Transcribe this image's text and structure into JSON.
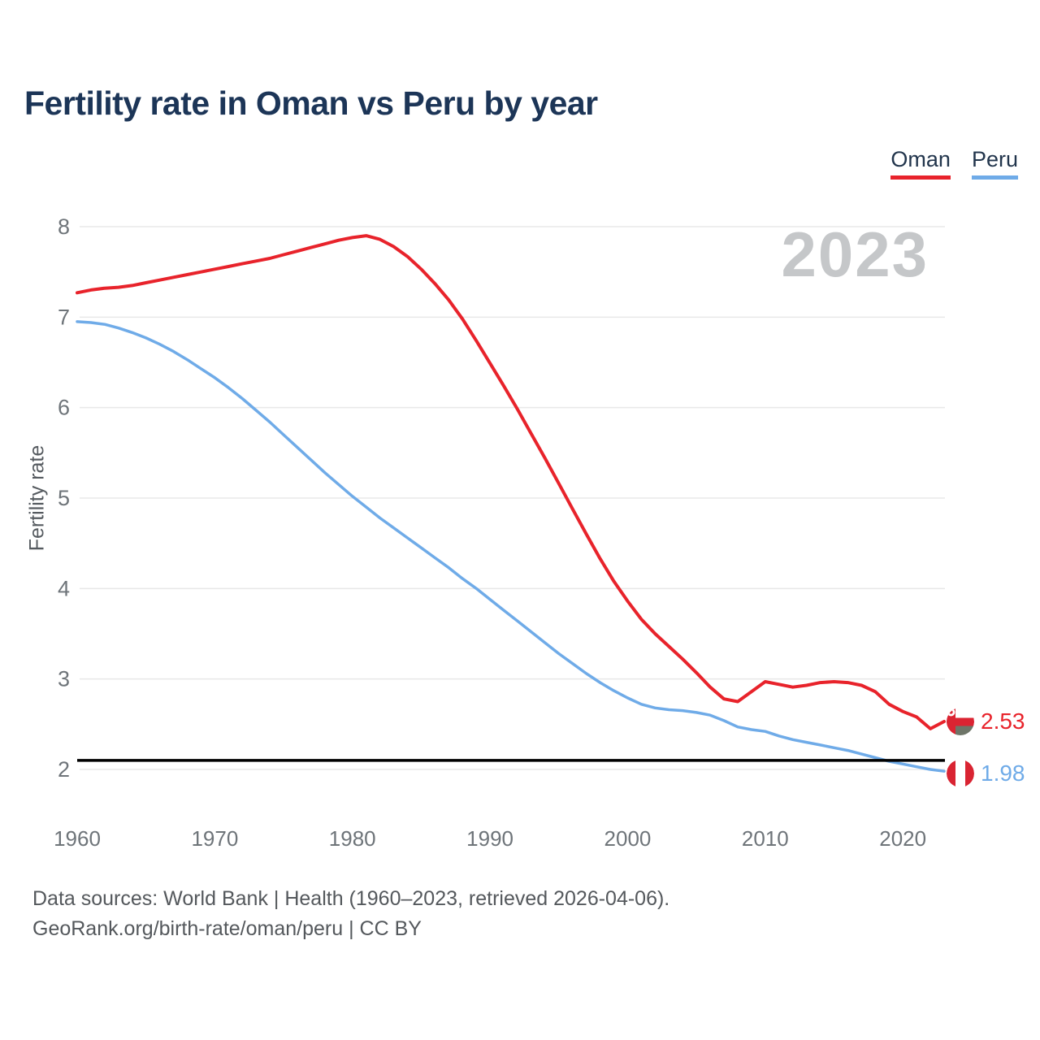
{
  "header": {
    "title": "Fertility rate in Oman vs Peru by year"
  },
  "legend": {
    "items": [
      {
        "label": "Oman",
        "color": "#e8232b"
      },
      {
        "label": "Peru",
        "color": "#6fabe8"
      }
    ]
  },
  "watermark": "2023",
  "colors": {
    "title": "#1c3557",
    "tick_label": "#6e7479",
    "grid": "#e8e8e8",
    "reference_line": "#000000",
    "oman_red": "#e8232b",
    "peru_blue": "#6fabe8",
    "watermark_gray": "#c5c7c9"
  },
  "chart_data": {
    "type": "line",
    "title": "Fertility rate in Oman vs Peru by year",
    "xlabel": "",
    "ylabel": "Fertility rate",
    "xlim": [
      1960,
      2023
    ],
    "ylim": [
      2,
      8
    ],
    "x_ticks": [
      "1960",
      "1970",
      "1980",
      "1990",
      "2000",
      "2010",
      "2020"
    ],
    "x_tick_years": [
      1960,
      1970,
      1980,
      1990,
      2000,
      2010,
      2020
    ],
    "y_ticks": [
      8,
      7,
      6,
      5,
      4,
      3,
      2
    ],
    "grid": "horizontal",
    "legend_position": "top-right",
    "reference_line": {
      "value": 2.1,
      "color": "#000000"
    },
    "x": [
      1960,
      1961,
      1962,
      1963,
      1964,
      1965,
      1966,
      1967,
      1968,
      1969,
      1970,
      1971,
      1972,
      1973,
      1974,
      1975,
      1976,
      1977,
      1978,
      1979,
      1980,
      1981,
      1982,
      1983,
      1984,
      1985,
      1986,
      1987,
      1988,
      1989,
      1990,
      1991,
      1992,
      1993,
      1994,
      1995,
      1996,
      1997,
      1998,
      1999,
      2000,
      2001,
      2002,
      2003,
      2004,
      2005,
      2006,
      2007,
      2008,
      2009,
      2010,
      2011,
      2012,
      2013,
      2014,
      2015,
      2016,
      2017,
      2018,
      2019,
      2020,
      2021,
      2022,
      2023
    ],
    "series": [
      {
        "name": "Oman",
        "color": "#e8232b",
        "stroke_width": 4,
        "end_label": "2.53",
        "values": [
          7.27,
          7.3,
          7.32,
          7.33,
          7.35,
          7.38,
          7.41,
          7.44,
          7.47,
          7.5,
          7.53,
          7.56,
          7.59,
          7.62,
          7.65,
          7.69,
          7.73,
          7.77,
          7.81,
          7.85,
          7.88,
          7.9,
          7.86,
          7.78,
          7.67,
          7.53,
          7.37,
          7.19,
          6.98,
          6.74,
          6.49,
          6.24,
          5.98,
          5.71,
          5.44,
          5.16,
          4.88,
          4.6,
          4.33,
          4.08,
          3.86,
          3.66,
          3.5,
          3.36,
          3.22,
          3.07,
          2.91,
          2.78,
          2.75,
          2.86,
          2.97,
          2.94,
          2.91,
          2.93,
          2.96,
          2.97,
          2.96,
          2.93,
          2.86,
          2.72,
          2.64,
          2.58,
          2.45,
          2.53
        ]
      },
      {
        "name": "Peru",
        "color": "#6fabe8",
        "stroke_width": 3.5,
        "end_label": "1.98",
        "values": [
          6.95,
          6.94,
          6.92,
          6.88,
          6.83,
          6.77,
          6.7,
          6.62,
          6.53,
          6.43,
          6.33,
          6.22,
          6.1,
          5.97,
          5.84,
          5.7,
          5.56,
          5.42,
          5.28,
          5.15,
          5.02,
          4.9,
          4.78,
          4.67,
          4.56,
          4.45,
          4.34,
          4.23,
          4.11,
          4.0,
          3.88,
          3.76,
          3.64,
          3.52,
          3.4,
          3.28,
          3.17,
          3.06,
          2.96,
          2.87,
          2.79,
          2.72,
          2.68,
          2.66,
          2.65,
          2.63,
          2.6,
          2.54,
          2.47,
          2.44,
          2.42,
          2.37,
          2.33,
          2.3,
          2.27,
          2.24,
          2.21,
          2.17,
          2.13,
          2.09,
          2.06,
          2.03,
          2.0,
          1.98
        ]
      }
    ]
  },
  "end_markers": [
    {
      "country": "Oman",
      "value": "2.53",
      "color": "#e8232b",
      "flag": "oman-flag"
    },
    {
      "country": "Peru",
      "value": "1.98",
      "color": "#6fabe8",
      "flag": "peru-flag"
    }
  ],
  "flags": {
    "oman": {
      "red": "#db2432",
      "green_gray": "#6e7568",
      "white": "#ffffff"
    },
    "peru": {
      "red": "#d92432",
      "white": "#ffffff"
    }
  },
  "footer": {
    "line1": "Data sources: World Bank | Health (1960–2023, retrieved 2026-04-06).",
    "line2": "GeoRank.org/birth-rate/oman/peru | CC BY"
  }
}
